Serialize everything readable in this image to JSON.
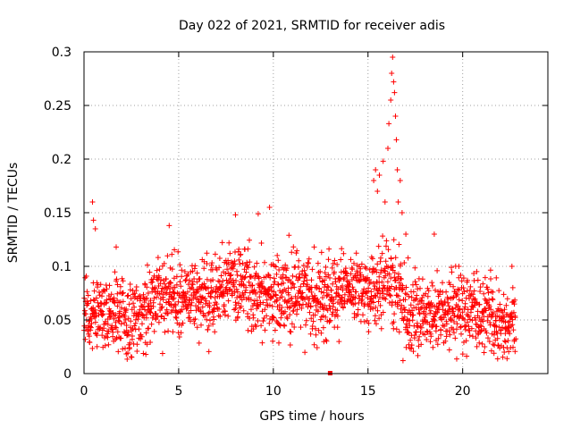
{
  "chart_data": {
    "type": "scatter",
    "title": "Day 022 of 2021, SRMTID for receiver adis",
    "xlabel": "GPS time / hours",
    "ylabel": "SRMTID / TECUs",
    "xlim": [
      0,
      24.5
    ],
    "ylim": [
      0,
      0.3
    ],
    "xticks": [
      0,
      5,
      10,
      15,
      20
    ],
    "xtick_labels": [
      "0",
      "5",
      "10",
      "15",
      "20"
    ],
    "yticks": [
      0,
      0.05,
      0.1,
      0.15,
      0.2,
      0.25,
      0.3
    ],
    "ytick_labels": [
      "0",
      "0.05",
      "0.1",
      "0.15",
      "0.2",
      "0.25",
      "0.3"
    ],
    "grid": true,
    "marker": "+",
    "color": "#ff0000",
    "series": [
      {
        "name": "SRMTID",
        "trend": [
          [
            0,
            0.055
          ],
          [
            1,
            0.055
          ],
          [
            2,
            0.05
          ],
          [
            3,
            0.055
          ],
          [
            4,
            0.075
          ],
          [
            5,
            0.072
          ],
          [
            6,
            0.068
          ],
          [
            7,
            0.075
          ],
          [
            8,
            0.088
          ],
          [
            9,
            0.075
          ],
          [
            10,
            0.07
          ],
          [
            11,
            0.075
          ],
          [
            12,
            0.072
          ],
          [
            13,
            0.075
          ],
          [
            14,
            0.085
          ],
          [
            15,
            0.075
          ],
          [
            16,
            0.09
          ],
          [
            17,
            0.06
          ],
          [
            18,
            0.055
          ],
          [
            19,
            0.055
          ],
          [
            20,
            0.06
          ],
          [
            21,
            0.055
          ],
          [
            22,
            0.045
          ],
          [
            22.8,
            0.045
          ]
        ],
        "spread": 0.022,
        "n_points": 1900,
        "outliers": [
          [
            0.45,
            0.16
          ],
          [
            0.5,
            0.143
          ],
          [
            0.6,
            0.135
          ],
          [
            1.7,
            0.118
          ],
          [
            4.5,
            0.138
          ],
          [
            8.0,
            0.148
          ],
          [
            9.2,
            0.149
          ],
          [
            9.8,
            0.155
          ],
          [
            15.3,
            0.18
          ],
          [
            15.4,
            0.19
          ],
          [
            15.5,
            0.17
          ],
          [
            15.6,
            0.185
          ],
          [
            15.8,
            0.198
          ],
          [
            15.9,
            0.16
          ],
          [
            16.05,
            0.21
          ],
          [
            16.1,
            0.233
          ],
          [
            16.2,
            0.255
          ],
          [
            16.25,
            0.28
          ],
          [
            16.3,
            0.295
          ],
          [
            16.35,
            0.272
          ],
          [
            16.4,
            0.262
          ],
          [
            16.45,
            0.24
          ],
          [
            16.5,
            0.218
          ],
          [
            16.55,
            0.19
          ],
          [
            16.6,
            0.16
          ],
          [
            16.7,
            0.18
          ],
          [
            16.8,
            0.15
          ],
          [
            17.0,
            0.13
          ],
          [
            18.5,
            0.13
          ],
          [
            19.8,
            0.1
          ],
          [
            22.6,
            0.1
          ]
        ],
        "anomaly": [
          13.0,
          0.0
        ]
      }
    ]
  }
}
